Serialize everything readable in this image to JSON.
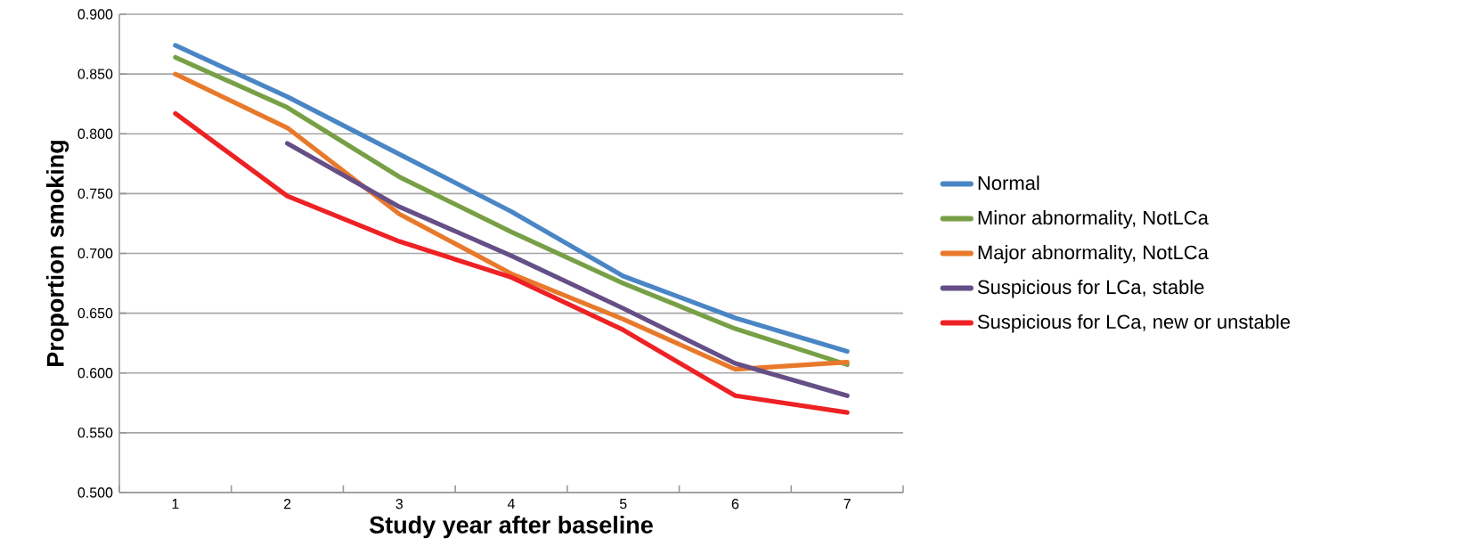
{
  "chart_data": {
    "type": "line",
    "xlabel": "Study year after baseline",
    "ylabel": "Proportion smoking",
    "categories": [
      "1",
      "2",
      "3",
      "4",
      "5",
      "6",
      "7"
    ],
    "series": [
      {
        "name": "Normal",
        "color": "#4a86c5",
        "values": [
          0.874,
          0.831,
          0.783,
          0.735,
          0.681,
          0.646,
          0.618
        ]
      },
      {
        "name": "Minor abnormality, NotLCa",
        "color": "#77a046",
        "values": [
          0.864,
          0.822,
          0.764,
          0.718,
          0.675,
          0.637,
          0.607
        ]
      },
      {
        "name": "Major abnormality, NotLCa",
        "color": "#e8792b",
        "values": [
          0.85,
          0.805,
          0.733,
          0.683,
          0.645,
          0.603,
          0.609
        ]
      },
      {
        "name": "Suspicious for LCa, stable",
        "color": "#654f86",
        "values": [
          null,
          0.792,
          0.739,
          0.698,
          0.654,
          0.608,
          0.581
        ]
      },
      {
        "name": "Suspicious for LCa, new or unstable",
        "color": "#ee2124",
        "values": [
          0.817,
          0.748,
          0.71,
          0.68,
          0.636,
          0.581,
          0.567
        ]
      }
    ],
    "ylim": [
      0.5,
      0.9
    ],
    "yticks": [
      {
        "value": 0.5,
        "label": "0.500"
      },
      {
        "value": 0.55,
        "label": "0.550"
      },
      {
        "value": 0.6,
        "label": "0.600"
      },
      {
        "value": 0.65,
        "label": "0.650"
      },
      {
        "value": 0.7,
        "label": "0.700"
      },
      {
        "value": 0.75,
        "label": "0.750"
      },
      {
        "value": 0.8,
        "label": "0.800"
      },
      {
        "value": 0.85,
        "label": "0.850"
      },
      {
        "value": 0.9,
        "label": "0.900"
      }
    ],
    "grid": "y",
    "legend": "right",
    "marker": "none",
    "line_style": "solid"
  }
}
